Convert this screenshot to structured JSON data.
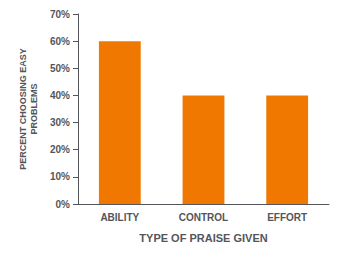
{
  "chart_data": {
    "type": "bar",
    "categories": [
      "ABILITY",
      "CONTROL",
      "EFFORT"
    ],
    "values": [
      60,
      40,
      40
    ],
    "color": "#F07800",
    "xlabel": "TYPE OF PRAISE GIVEN",
    "ylabel": "PERCENT CHOOSING EASY\nPROBLEMS",
    "ylim": [
      0,
      70
    ],
    "yticks": [
      {
        "value": 0,
        "label": "0%"
      },
      {
        "value": 10,
        "label": "10%"
      },
      {
        "value": 20,
        "label": "20%"
      },
      {
        "value": 30,
        "label": "30%"
      },
      {
        "value": 40,
        "label": "40%"
      },
      {
        "value": 50,
        "label": "50%"
      },
      {
        "value": 60,
        "label": "60%"
      },
      {
        "value": 70,
        "label": "70%"
      }
    ],
    "grid": false
  }
}
